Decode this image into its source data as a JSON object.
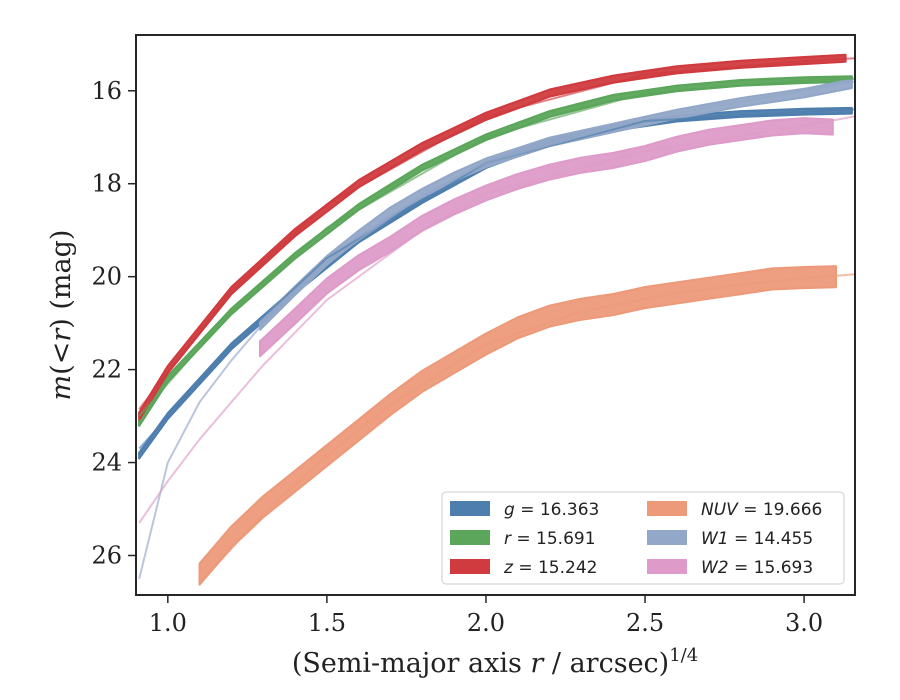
{
  "chart_data": {
    "type": "line",
    "title": "",
    "xlabel_main": "(Semi-major axis ",
    "xlabel_var": "r",
    "xlabel_rest": " / arcsec)",
    "xlabel_sup": "1/4",
    "ylabel_var1": "m",
    "ylabel_mid": "(<",
    "ylabel_var2": "r",
    "ylabel_end": ") (mag)",
    "xlim": [
      0.9,
      3.16
    ],
    "ylim": [
      26.85,
      14.8
    ],
    "y_inverted": true,
    "grid": false,
    "legend_position": "lower-right",
    "xticks": [
      1.0,
      1.5,
      2.0,
      2.5,
      3.0
    ],
    "xtick_labels": [
      "1.0",
      "1.5",
      "2.0",
      "2.5",
      "3.0"
    ],
    "yticks": [
      16,
      18,
      20,
      22,
      24,
      26
    ],
    "ytick_labels": [
      "16",
      "18",
      "20",
      "22",
      "24",
      "26"
    ],
    "series": [
      {
        "name": "g = 16.363",
        "legend_var": "g",
        "legend_value": " = 16.363",
        "color": "#4E7EAE",
        "band_width": 0.12,
        "x": [
          0.91,
          1.0,
          1.2,
          1.4,
          1.6,
          1.8,
          2.0,
          2.2,
          2.4,
          2.6,
          2.8,
          3.0,
          3.15
        ],
        "y": [
          23.85,
          23.0,
          21.5,
          20.3,
          19.2,
          18.35,
          17.6,
          17.1,
          16.8,
          16.6,
          16.5,
          16.45,
          16.43
        ],
        "model_x": [
          0.91,
          1.2,
          1.5,
          2.0,
          2.5,
          3.0,
          3.16
        ],
        "model_y": [
          23.7,
          21.5,
          19.6,
          17.55,
          16.65,
          16.45,
          16.4
        ]
      },
      {
        "name": "r = 15.691",
        "legend_var": "r",
        "legend_value": " = 15.691",
        "color": "#5BA65B",
        "band_width": 0.12,
        "x": [
          0.91,
          1.0,
          1.2,
          1.4,
          1.6,
          1.8,
          2.0,
          2.2,
          2.4,
          2.6,
          2.8,
          3.0,
          3.15
        ],
        "y": [
          23.15,
          22.2,
          20.75,
          19.55,
          18.5,
          17.65,
          17.0,
          16.5,
          16.15,
          15.95,
          15.83,
          15.77,
          15.75
        ],
        "model_x": [
          0.91,
          1.2,
          1.5,
          2.0,
          2.5,
          3.0,
          3.16
        ],
        "model_y": [
          23.0,
          20.75,
          18.95,
          17.0,
          16.05,
          15.78,
          15.74
        ]
      },
      {
        "name": "z = 15.242",
        "legend_var": "z",
        "legend_value": " = 15.242",
        "color": "#D03B3F",
        "band_width": 0.15,
        "x": [
          0.91,
          1.0,
          1.2,
          1.4,
          1.6,
          1.8,
          2.0,
          2.2,
          2.4,
          2.6,
          2.8,
          3.0,
          3.13
        ],
        "y": [
          23.0,
          22.0,
          20.3,
          19.05,
          18.0,
          17.2,
          16.55,
          16.05,
          15.75,
          15.55,
          15.43,
          15.35,
          15.3
        ],
        "model_x": [
          0.91,
          1.2,
          1.5,
          2.0,
          2.5,
          3.0,
          3.16
        ],
        "model_y": [
          22.85,
          20.3,
          18.45,
          16.55,
          15.65,
          15.36,
          15.3
        ]
      },
      {
        "name": "NUV = 19.666",
        "legend_var": "NUV",
        "legend_value": " = 19.666",
        "color": "#ED9A7A",
        "band_width": 0.45,
        "x": [
          1.1,
          1.2,
          1.3,
          1.4,
          1.5,
          1.6,
          1.7,
          1.8,
          1.9,
          2.0,
          2.1,
          2.2,
          2.3,
          2.4,
          2.5,
          2.6,
          2.7,
          2.8,
          2.9,
          3.0,
          3.1
        ],
        "y": [
          26.4,
          25.6,
          24.95,
          24.4,
          23.85,
          23.3,
          22.75,
          22.25,
          21.85,
          21.45,
          21.1,
          20.85,
          20.7,
          20.6,
          20.45,
          20.35,
          20.25,
          20.15,
          20.05,
          20.02,
          20.0
        ],
        "model_x": [
          1.1,
          1.3,
          1.5,
          1.7,
          2.0,
          2.3,
          2.6,
          2.9,
          3.16
        ],
        "model_y": [
          26.6,
          25.1,
          23.85,
          22.75,
          21.45,
          20.75,
          20.35,
          20.1,
          19.95
        ]
      },
      {
        "name": "W1 = 14.455",
        "legend_var": "W1",
        "legend_value": " = 14.455",
        "color": "#93A8C8",
        "band_width": 0.18,
        "x": [
          1.29,
          1.4,
          1.5,
          1.6,
          1.7,
          1.8,
          1.9,
          2.0,
          2.2,
          2.4,
          2.6,
          2.8,
          3.0,
          3.15
        ],
        "y": [
          21.05,
          20.3,
          19.65,
          19.1,
          18.6,
          18.2,
          17.85,
          17.55,
          17.1,
          16.8,
          16.5,
          16.25,
          16.05,
          15.85
        ],
        "model_x": [
          0.91,
          1.0,
          1.1,
          1.2,
          1.3,
          1.5,
          1.8,
          2.0,
          2.5,
          3.0,
          3.16
        ],
        "model_y": [
          26.5,
          24.0,
          22.7,
          21.8,
          21.0,
          19.7,
          18.25,
          17.55,
          16.6,
          16.0,
          15.8
        ]
      },
      {
        "name": "W2 = 15.693",
        "legend_var": "W2",
        "legend_value": " = 15.693",
        "color": "#DE9BC9",
        "band_width": 0.32,
        "x": [
          1.29,
          1.4,
          1.5,
          1.6,
          1.7,
          1.8,
          1.9,
          2.0,
          2.1,
          2.2,
          2.3,
          2.4,
          2.5,
          2.6,
          2.7,
          2.8,
          2.9,
          3.0,
          3.09
        ],
        "y": [
          21.55,
          20.85,
          20.2,
          19.7,
          19.3,
          18.85,
          18.5,
          18.2,
          17.95,
          17.75,
          17.6,
          17.5,
          17.35,
          17.15,
          17.0,
          16.9,
          16.8,
          16.75,
          16.78
        ],
        "model_x": [
          0.91,
          1.0,
          1.1,
          1.2,
          1.3,
          1.5,
          1.8,
          2.0,
          2.5,
          3.0,
          3.16
        ],
        "model_y": [
          25.3,
          24.4,
          23.5,
          22.7,
          21.9,
          20.5,
          19.0,
          18.2,
          17.3,
          16.75,
          16.55
        ]
      }
    ]
  }
}
